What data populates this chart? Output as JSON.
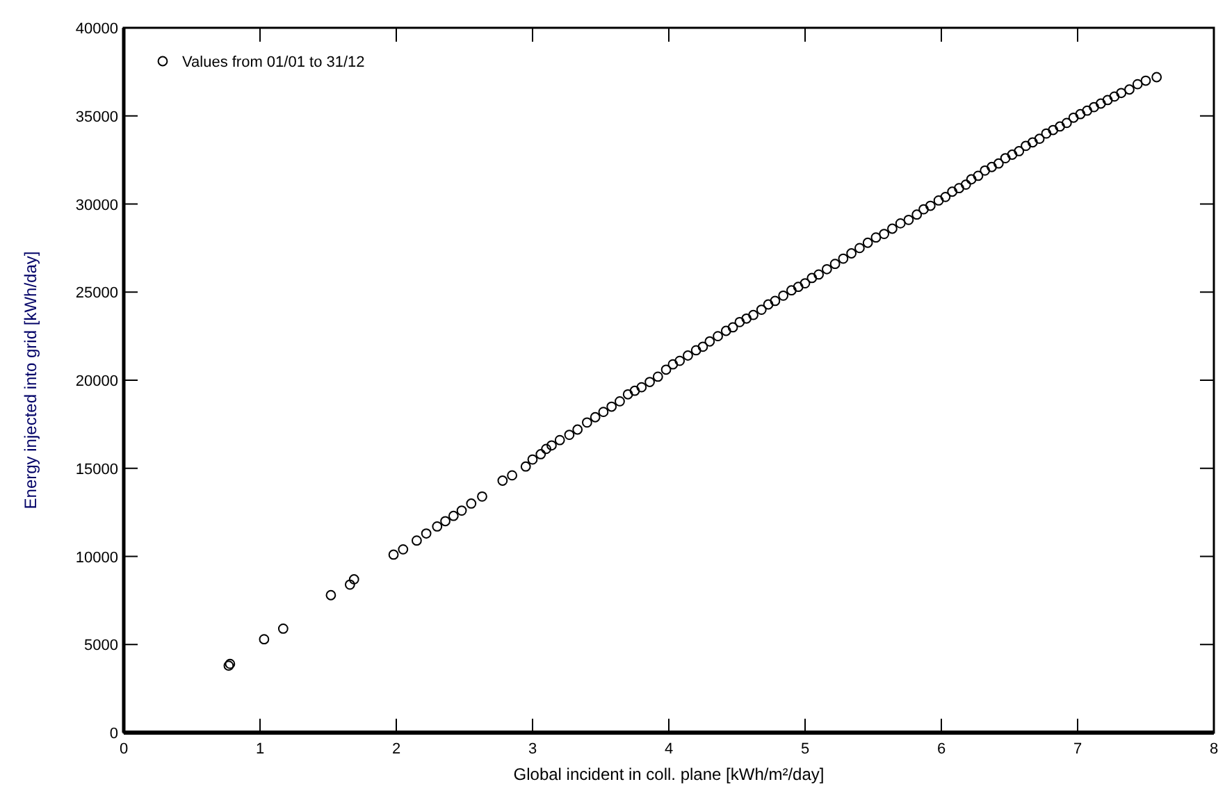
{
  "chart_data": {
    "type": "scatter",
    "xlabel": "Global incident in coll. plane [kWh/m²/day]",
    "ylabel": "Energy injected into grid [kWh/day]",
    "legend": "top left",
    "marker": "circle",
    "grid": false,
    "series": [
      {
        "name": "Values from 01/01 to 31/12",
        "color": "#000000",
        "x": [
          0.77,
          0.78,
          1.03,
          1.17,
          1.52,
          1.66,
          1.69,
          1.98,
          2.05,
          2.15,
          2.22,
          2.3,
          2.36,
          2.42,
          2.48,
          2.55,
          2.63,
          2.78,
          2.85,
          2.95,
          3.0,
          3.06,
          3.1,
          3.14,
          3.2,
          3.27,
          3.33,
          3.4,
          3.46,
          3.52,
          3.58,
          3.64,
          3.7,
          3.75,
          3.8,
          3.86,
          3.92,
          3.98,
          4.03,
          4.08,
          4.14,
          4.2,
          4.25,
          4.3,
          4.36,
          4.42,
          4.47,
          4.52,
          4.57,
          4.62,
          4.68,
          4.73,
          4.78,
          4.84,
          4.9,
          4.95,
          5.0,
          5.05,
          5.1,
          5.16,
          5.22,
          5.28,
          5.34,
          5.4,
          5.46,
          5.52,
          5.58,
          5.64,
          5.7,
          5.76,
          5.82,
          5.87,
          5.92,
          5.98,
          6.03,
          6.08,
          6.13,
          6.18,
          6.22,
          6.27,
          6.32,
          6.37,
          6.42,
          6.47,
          6.52,
          6.57,
          6.62,
          6.67,
          6.72,
          6.77,
          6.82,
          6.87,
          6.92,
          6.97,
          7.02,
          7.07,
          7.12,
          7.17,
          7.22,
          7.27,
          7.32,
          7.38,
          7.44,
          7.5,
          7.58
        ],
        "values": [
          3800,
          3900,
          5300,
          5900,
          7800,
          8400,
          8700,
          10100,
          10400,
          10900,
          11300,
          11700,
          12000,
          12300,
          12600,
          13000,
          13400,
          14300,
          14600,
          15100,
          15500,
          15800,
          16100,
          16300,
          16600,
          16900,
          17200,
          17600,
          17900,
          18200,
          18500,
          18800,
          19200,
          19400,
          19600,
          19900,
          20200,
          20600,
          20900,
          21100,
          21400,
          21700,
          21900,
          22200,
          22500,
          22800,
          23000,
          23300,
          23500,
          23700,
          24000,
          24300,
          24500,
          24800,
          25100,
          25300,
          25500,
          25800,
          26000,
          26300,
          26600,
          26900,
          27200,
          27500,
          27800,
          28100,
          28300,
          28600,
          28900,
          29100,
          29400,
          29700,
          29900,
          30200,
          30400,
          30700,
          30900,
          31100,
          31400,
          31600,
          31900,
          32100,
          32300,
          32600,
          32800,
          33000,
          33300,
          33500,
          33700,
          34000,
          34200,
          34400,
          34600,
          34900,
          35100,
          35300,
          35500,
          35700,
          35900,
          36100,
          36300,
          36500,
          36800,
          37000,
          37200
        ]
      }
    ],
    "xlim": [
      0,
      8
    ],
    "xticks": [
      0,
      1,
      2,
      3,
      4,
      5,
      6,
      7,
      8
    ],
    "ylim": [
      0,
      40000
    ],
    "yticks": [
      0,
      5000,
      10000,
      15000,
      20000,
      25000,
      30000,
      35000,
      40000
    ]
  }
}
